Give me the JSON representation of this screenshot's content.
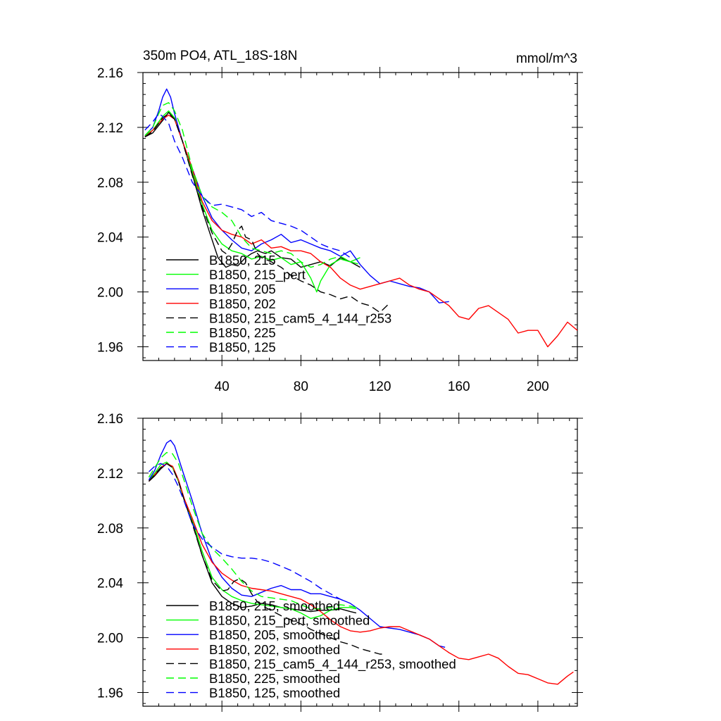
{
  "chart_data": [
    {
      "type": "line",
      "title": "350m PO4, ATL_18S-18N",
      "units_label": "mmol/m^3",
      "xlabel": "",
      "ylabel": "",
      "xlim": [
        0,
        220
      ],
      "ylim": [
        1.95,
        2.16
      ],
      "x_ticks": [
        40,
        80,
        120,
        160,
        200
      ],
      "x_tick_labels": [
        "40",
        "80",
        "120",
        "160",
        "200"
      ],
      "y_ticks": [
        1.96,
        2.0,
        2.04,
        2.08,
        2.12,
        2.16
      ],
      "y_tick_labels": [
        "1.96",
        "2.00",
        "2.04",
        "2.08",
        "2.12",
        "2.16"
      ],
      "grid": false,
      "legend_position": "lower-left",
      "series": [
        {
          "name": "B1850, 215",
          "color": "#000000",
          "dash": "solid",
          "x": [
            1,
            5,
            10,
            13,
            16,
            20,
            25,
            30,
            35,
            38,
            42,
            45,
            48,
            52,
            55,
            58,
            62,
            65,
            70,
            75,
            80,
            85,
            90,
            95,
            100,
            105,
            110
          ],
          "y": [
            2.113,
            2.116,
            2.125,
            2.131,
            2.126,
            2.11,
            2.086,
            2.06,
            2.038,
            2.025,
            2.018,
            2.02,
            2.019,
            2.025,
            2.028,
            2.03,
            2.028,
            2.03,
            2.025,
            2.024,
            2.018,
            2.02,
            2.022,
            2.019,
            2.025,
            2.022,
            2.018
          ]
        },
        {
          "name": "B1850, 215_pert",
          "color": "#00ff00",
          "dash": "solid",
          "x": [
            1,
            5,
            10,
            13,
            16,
            20,
            25,
            30,
            35,
            40,
            45,
            50,
            55,
            60,
            65,
            70,
            75,
            80,
            85,
            88,
            90,
            95,
            100,
            105,
            110
          ],
          "y": [
            2.114,
            2.118,
            2.128,
            2.132,
            2.127,
            2.11,
            2.088,
            2.064,
            2.045,
            2.035,
            2.03,
            2.028,
            2.024,
            2.026,
            2.023,
            2.025,
            2.02,
            2.022,
            2.01,
            2.0,
            2.008,
            2.02,
            2.024,
            2.022,
            2.025
          ]
        },
        {
          "name": "B1850, 205",
          "color": "#0000ff",
          "dash": "solid",
          "x": [
            1,
            5,
            8,
            10,
            12,
            14,
            16,
            20,
            25,
            30,
            35,
            40,
            45,
            50,
            55,
            60,
            65,
            70,
            75,
            80,
            85,
            90,
            95,
            100,
            105,
            110,
            115,
            120,
            125,
            130,
            135,
            140,
            145,
            150,
            155
          ],
          "y": [
            2.114,
            2.12,
            2.132,
            2.142,
            2.148,
            2.142,
            2.13,
            2.11,
            2.09,
            2.07,
            2.054,
            2.045,
            2.038,
            2.032,
            2.03,
            2.035,
            2.038,
            2.042,
            2.036,
            2.038,
            2.035,
            2.032,
            2.03,
            2.026,
            2.03,
            2.02,
            2.012,
            2.006,
            2.008,
            2.006,
            2.004,
            2.003,
            2.0,
            1.992,
            1.993
          ]
        },
        {
          "name": "B1850, 202",
          "color": "#ff0000",
          "dash": "solid",
          "x": [
            1,
            5,
            10,
            13,
            16,
            20,
            25,
            30,
            35,
            40,
            45,
            50,
            55,
            60,
            65,
            70,
            75,
            80,
            85,
            90,
            95,
            100,
            105,
            110,
            115,
            120,
            125,
            130,
            135,
            140,
            145,
            150,
            155,
            160,
            165,
            170,
            175,
            180,
            185,
            190,
            195,
            200,
            205,
            210,
            215,
            220
          ],
          "y": [
            2.113,
            2.118,
            2.126,
            2.129,
            2.126,
            2.11,
            2.09,
            2.066,
            2.052,
            2.045,
            2.042,
            2.04,
            2.035,
            2.038,
            2.032,
            2.033,
            2.03,
            2.03,
            2.028,
            2.022,
            2.018,
            2.01,
            2.005,
            2.002,
            2.004,
            2.006,
            2.008,
            2.01,
            2.005,
            2.002,
            2.0,
            1.995,
            1.99,
            1.982,
            1.98,
            1.988,
            1.99,
            1.985,
            1.98,
            1.97,
            1.972,
            1.972,
            1.96,
            1.968,
            1.978,
            1.972
          ]
        },
        {
          "name": "B1850, 215_cam5_4_144_r253",
          "color": "#000000",
          "dash": "dashed",
          "x": [
            1,
            5,
            10,
            13,
            16,
            20,
            25,
            30,
            35,
            40,
            42,
            45,
            48,
            50,
            52,
            55,
            58,
            60,
            65,
            70,
            75,
            80,
            85,
            90,
            95,
            100,
            105,
            110,
            115,
            120,
            125
          ],
          "y": [
            2.113,
            2.117,
            2.127,
            2.13,
            2.126,
            2.11,
            2.085,
            2.062,
            2.043,
            2.03,
            2.028,
            2.035,
            2.045,
            2.048,
            2.04,
            2.038,
            2.028,
            2.025,
            2.022,
            2.018,
            2.012,
            2.008,
            2.005,
            2.0,
            1.998,
            1.995,
            1.997,
            1.992,
            1.99,
            1.985,
            1.992
          ]
        },
        {
          "name": "B1850, 225",
          "color": "#00ff00",
          "dash": "dashed",
          "x": [
            1,
            5,
            8,
            10,
            13,
            16,
            20,
            25,
            30,
            35,
            40,
            45,
            50,
            55,
            60,
            65,
            70,
            75,
            80,
            85,
            90,
            95,
            100,
            105,
            110
          ],
          "y": [
            2.114,
            2.12,
            2.13,
            2.136,
            2.138,
            2.132,
            2.118,
            2.09,
            2.07,
            2.062,
            2.058,
            2.052,
            2.04,
            2.032,
            2.03,
            2.028,
            2.03,
            2.028,
            2.022,
            2.018,
            2.02,
            2.024,
            2.026,
            2.022,
            2.02
          ]
        },
        {
          "name": "B1850, 125",
          "color": "#0000ff",
          "dash": "dashed",
          "x": [
            1,
            5,
            8,
            10,
            13,
            16,
            20,
            25,
            30,
            35,
            40,
            45,
            50,
            55,
            60,
            65,
            70,
            75,
            80,
            85,
            90,
            95,
            100,
            105
          ],
          "y": [
            2.118,
            2.124,
            2.13,
            2.128,
            2.123,
            2.11,
            2.098,
            2.08,
            2.07,
            2.063,
            2.064,
            2.062,
            2.06,
            2.055,
            2.058,
            2.052,
            2.05,
            2.048,
            2.045,
            2.04,
            2.035,
            2.032,
            2.03,
            2.025
          ]
        }
      ]
    },
    {
      "type": "line",
      "title": "",
      "xlabel": "",
      "ylabel": "",
      "xlim": [
        0,
        220
      ],
      "ylim": [
        1.95,
        2.16
      ],
      "x_ticks": [
        40,
        80,
        120,
        160,
        200
      ],
      "y_ticks": [
        1.96,
        2.0,
        2.04,
        2.08,
        2.12,
        2.16
      ],
      "y_tick_labels": [
        "1.96",
        "2.00",
        "2.04",
        "2.08",
        "2.12",
        "2.16"
      ],
      "grid": false,
      "legend_position": "lower-left",
      "series": [
        {
          "name": "B1850, 215, smoothed",
          "color": "#000000",
          "dash": "solid",
          "x": [
            3,
            6,
            9,
            12,
            15,
            18,
            21,
            25,
            30,
            35,
            40,
            45,
            50,
            55,
            60,
            65,
            70,
            75,
            80,
            85,
            90,
            95,
            100,
            105,
            108
          ],
          "y": [
            2.114,
            2.118,
            2.123,
            2.127,
            2.124,
            2.114,
            2.1,
            2.084,
            2.06,
            2.04,
            2.03,
            2.025,
            2.022,
            2.023,
            2.025,
            2.024,
            2.022,
            2.021,
            2.02,
            2.019,
            2.02,
            2.02,
            2.021,
            2.019,
            2.018
          ]
        },
        {
          "name": "B1850, 215_pert, smoothed",
          "color": "#00ff00",
          "dash": "solid",
          "x": [
            3,
            6,
            9,
            12,
            15,
            18,
            21,
            25,
            30,
            35,
            40,
            45,
            50,
            55,
            60,
            65,
            70,
            75,
            80,
            85,
            90,
            95,
            100,
            105,
            108
          ],
          "y": [
            2.115,
            2.12,
            2.126,
            2.128,
            2.124,
            2.114,
            2.1,
            2.086,
            2.063,
            2.044,
            2.035,
            2.03,
            2.027,
            2.025,
            2.024,
            2.023,
            2.022,
            2.021,
            2.018,
            2.014,
            2.016,
            2.02,
            2.022,
            2.022,
            2.021
          ]
        },
        {
          "name": "B1850, 205, smoothed",
          "color": "#0000ff",
          "dash": "solid",
          "x": [
            3,
            6,
            9,
            12,
            14,
            16,
            20,
            25,
            30,
            35,
            40,
            45,
            50,
            55,
            60,
            65,
            70,
            75,
            80,
            85,
            90,
            95,
            100,
            105,
            110,
            115,
            120,
            125,
            130,
            135,
            140,
            145,
            150,
            153
          ],
          "y": [
            2.115,
            2.122,
            2.133,
            2.142,
            2.144,
            2.14,
            2.122,
            2.1,
            2.076,
            2.056,
            2.044,
            2.036,
            2.031,
            2.03,
            2.033,
            2.036,
            2.038,
            2.035,
            2.035,
            2.032,
            2.032,
            2.03,
            2.028,
            2.025,
            2.02,
            2.014,
            2.008,
            2.007,
            2.006,
            2.004,
            2.002,
            1.999,
            1.994,
            1.993
          ]
        },
        {
          "name": "B1850, 202, smoothed",
          "color": "#ff0000",
          "dash": "solid",
          "x": [
            3,
            6,
            9,
            12,
            15,
            18,
            21,
            25,
            30,
            35,
            40,
            45,
            50,
            55,
            60,
            65,
            70,
            75,
            80,
            85,
            90,
            95,
            100,
            105,
            110,
            115,
            120,
            125,
            130,
            135,
            140,
            145,
            150,
            155,
            160,
            165,
            170,
            175,
            180,
            185,
            190,
            195,
            200,
            205,
            210,
            215,
            218
          ],
          "y": [
            2.114,
            2.119,
            2.124,
            2.127,
            2.125,
            2.115,
            2.101,
            2.087,
            2.068,
            2.055,
            2.047,
            2.042,
            2.038,
            2.036,
            2.035,
            2.034,
            2.032,
            2.03,
            2.028,
            2.024,
            2.019,
            2.013,
            2.008,
            2.005,
            2.004,
            2.005,
            2.007,
            2.008,
            2.008,
            2.005,
            2.002,
            1.999,
            1.994,
            1.989,
            1.985,
            1.984,
            1.986,
            1.988,
            1.985,
            1.979,
            1.974,
            1.973,
            1.97,
            1.967,
            1.966,
            1.972,
            1.975
          ]
        },
        {
          "name": "B1850, 215_cam5_4_144_r253, smoothed",
          "color": "#000000",
          "dash": "dashed",
          "x": [
            3,
            6,
            9,
            12,
            15,
            18,
            21,
            25,
            30,
            35,
            40,
            43,
            46,
            49,
            52,
            55,
            58,
            62,
            66,
            70,
            75,
            80,
            85,
            90,
            95,
            100,
            105,
            110,
            115,
            120,
            123
          ],
          "y": [
            2.114,
            2.119,
            2.124,
            2.127,
            2.124,
            2.114,
            2.1,
            2.083,
            2.06,
            2.042,
            2.034,
            2.035,
            2.041,
            2.043,
            2.04,
            2.032,
            2.026,
            2.022,
            2.019,
            2.016,
            2.013,
            2.01,
            2.006,
            2.003,
            2.0,
            1.997,
            1.995,
            1.992,
            1.99,
            1.988,
            1.988
          ]
        },
        {
          "name": "B1850, 225, smoothed",
          "color": "#00ff00",
          "dash": "dashed",
          "x": [
            3,
            6,
            9,
            12,
            15,
            18,
            21,
            25,
            30,
            35,
            40,
            45,
            50,
            55,
            60,
            65,
            70,
            75,
            80,
            85,
            90,
            95,
            100,
            105,
            108
          ],
          "y": [
            2.117,
            2.124,
            2.131,
            2.135,
            2.134,
            2.127,
            2.114,
            2.096,
            2.076,
            2.065,
            2.058,
            2.05,
            2.041,
            2.034,
            2.03,
            2.029,
            2.028,
            2.027,
            2.024,
            2.021,
            2.021,
            2.022,
            2.024,
            2.023,
            2.022
          ]
        },
        {
          "name": "B1850, 125, smoothed",
          "color": "#0000ff",
          "dash": "dashed",
          "x": [
            3,
            6,
            9,
            12,
            15,
            18,
            21,
            25,
            30,
            35,
            40,
            45,
            50,
            55,
            60,
            65,
            70,
            75,
            80,
            85,
            90,
            95,
            100,
            103
          ],
          "y": [
            2.121,
            2.125,
            2.127,
            2.125,
            2.119,
            2.11,
            2.099,
            2.083,
            2.072,
            2.066,
            2.061,
            2.059,
            2.058,
            2.058,
            2.057,
            2.055,
            2.052,
            2.049,
            2.045,
            2.041,
            2.036,
            2.032,
            2.028,
            2.026
          ]
        }
      ]
    }
  ]
}
